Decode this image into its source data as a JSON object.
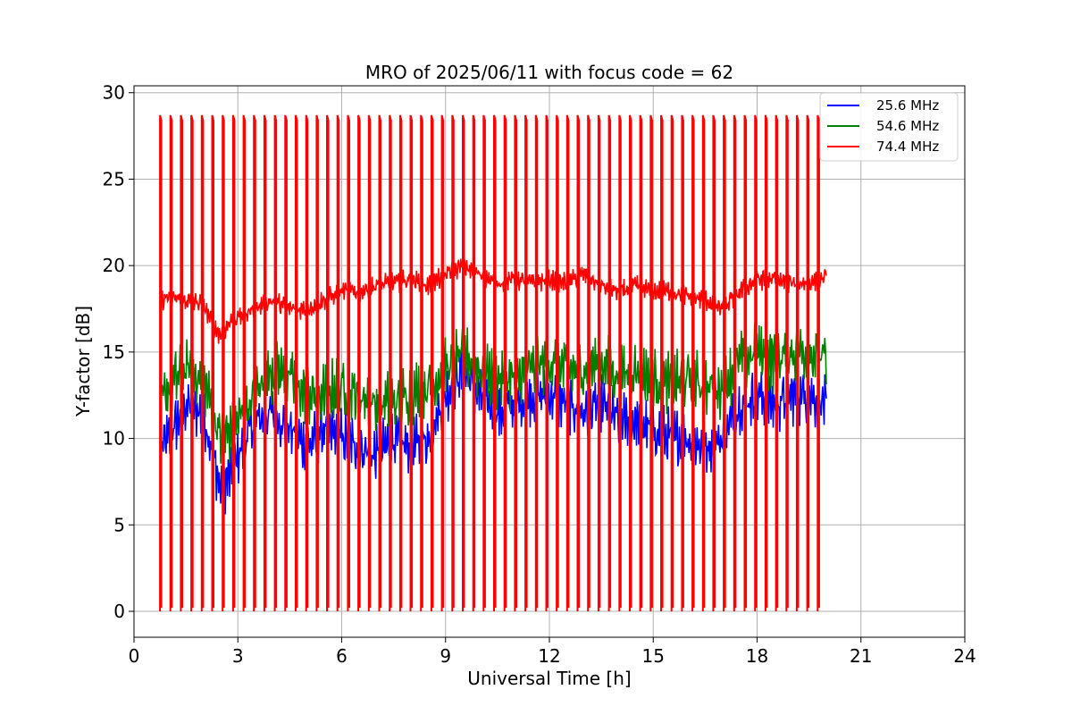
{
  "chart_data": {
    "type": "line",
    "title": "MRO of 2025/06/11 with focus code = 62",
    "xlabel": "Universal Time [h]",
    "ylabel": "Y-factor [dB]",
    "xlim": [
      0,
      24
    ],
    "ylim": [
      -1.5,
      30.4
    ],
    "xticks": [
      0,
      3,
      6,
      9,
      12,
      15,
      18,
      21,
      24
    ],
    "yticks": [
      0,
      5,
      10,
      15,
      20,
      25,
      30
    ],
    "grid": true,
    "legend_position": "top-right",
    "calibration": {
      "start_h": 0.75,
      "end_h": 19.75,
      "count": 64,
      "peak_db": 28.7
    },
    "series": [
      {
        "name": "25.6 MHz",
        "color": "#0000ff",
        "x": [
          0.8,
          1.0,
          1.5,
          2.0,
          2.3,
          2.5,
          2.8,
          3.0,
          3.5,
          4.0,
          4.5,
          5.0,
          5.5,
          6.0,
          6.5,
          7.0,
          7.5,
          8.0,
          8.5,
          9.0,
          9.5,
          10.0,
          10.5,
          11.0,
          11.5,
          12.0,
          12.5,
          13.0,
          13.5,
          14.0,
          14.5,
          15.0,
          15.5,
          16.0,
          16.5,
          17.0,
          17.5,
          18.0,
          18.5,
          19.0,
          19.5,
          20.0
        ],
        "values": [
          9.5,
          10.0,
          12.0,
          11.5,
          9.0,
          7.0,
          8.0,
          9.0,
          11.0,
          11.5,
          10.5,
          9.5,
          10.5,
          10.0,
          9.5,
          9.0,
          10.0,
          9.5,
          10.0,
          12.5,
          14.0,
          12.5,
          11.5,
          12.0,
          12.5,
          12.5,
          12.0,
          11.5,
          12.0,
          11.0,
          11.0,
          10.5,
          10.0,
          10.0,
          9.5,
          10.0,
          12.0,
          12.5,
          12.0,
          12.5,
          12.5,
          12.0
        ]
      },
      {
        "name": "54.6 MHz",
        "color": "#008000",
        "x": [
          0.8,
          1.0,
          1.5,
          2.0,
          2.3,
          2.5,
          2.8,
          3.0,
          3.5,
          4.0,
          4.5,
          5.0,
          5.5,
          6.0,
          6.5,
          7.0,
          7.5,
          8.0,
          8.5,
          9.0,
          9.5,
          10.0,
          10.5,
          11.0,
          11.5,
          12.0,
          12.5,
          13.0,
          13.5,
          14.0,
          14.5,
          15.0,
          15.5,
          16.0,
          16.5,
          17.0,
          17.5,
          18.0,
          18.5,
          19.0,
          19.5,
          20.0
        ],
        "values": [
          12.0,
          13.0,
          14.0,
          13.5,
          11.5,
          10.0,
          10.5,
          11.0,
          12.5,
          14.0,
          13.5,
          12.5,
          12.5,
          13.0,
          12.5,
          12.0,
          12.0,
          12.5,
          13.0,
          14.0,
          15.0,
          14.0,
          13.5,
          13.5,
          14.0,
          14.5,
          14.0,
          14.0,
          14.5,
          13.5,
          14.0,
          13.5,
          13.0,
          13.5,
          13.0,
          13.0,
          14.5,
          15.0,
          14.5,
          15.0,
          15.0,
          14.5
        ]
      },
      {
        "name": "74.4 MHz",
        "color": "#ff0000",
        "x": [
          0.8,
          1.0,
          1.5,
          2.0,
          2.3,
          2.5,
          2.8,
          3.0,
          3.5,
          4.0,
          4.5,
          5.0,
          5.5,
          6.0,
          6.5,
          7.0,
          7.5,
          8.0,
          8.5,
          9.0,
          9.5,
          10.0,
          10.5,
          11.0,
          11.5,
          12.0,
          12.5,
          13.0,
          13.5,
          14.0,
          14.5,
          15.0,
          15.5,
          16.0,
          16.5,
          17.0,
          17.5,
          18.0,
          18.5,
          19.0,
          19.5,
          20.0
        ],
        "values": [
          18.0,
          18.2,
          18.0,
          17.8,
          16.5,
          16.0,
          16.8,
          17.0,
          17.5,
          18.0,
          17.5,
          17.5,
          18.0,
          18.5,
          18.5,
          18.8,
          19.0,
          19.2,
          18.8,
          19.5,
          20.0,
          19.5,
          19.0,
          19.2,
          19.0,
          19.2,
          19.0,
          19.5,
          18.8,
          18.5,
          18.8,
          18.5,
          18.5,
          18.2,
          18.0,
          17.5,
          18.5,
          19.2,
          19.2,
          19.0,
          19.0,
          19.3
        ]
      }
    ]
  }
}
